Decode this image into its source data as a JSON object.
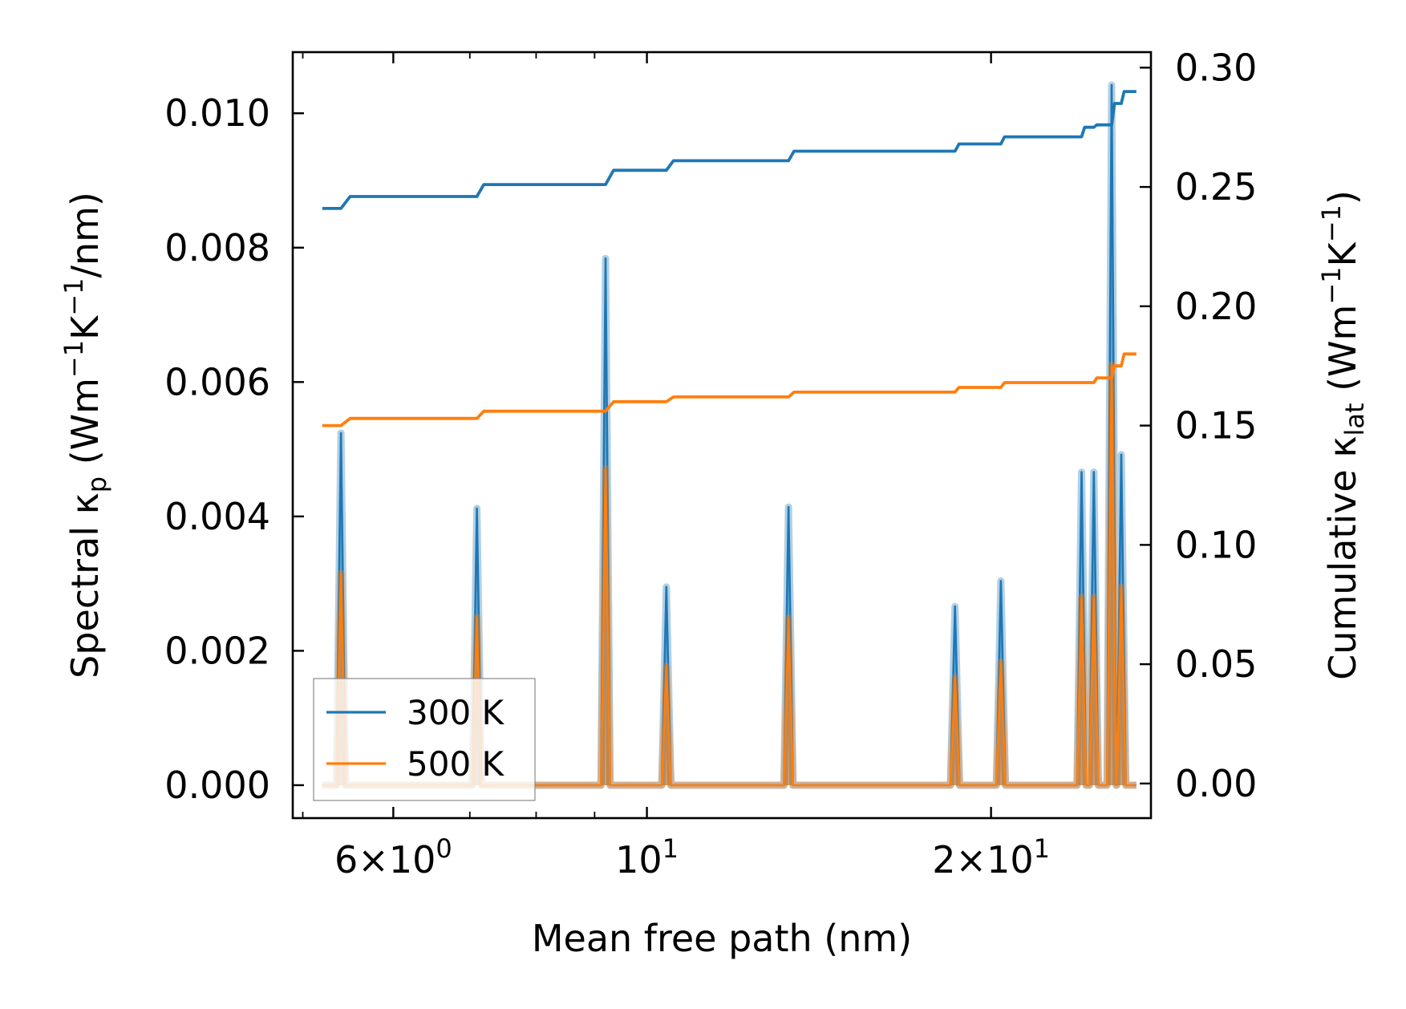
{
  "chart_data": {
    "type": "line",
    "title": "",
    "xlabel": "Mean free path (nm)",
    "xscale": "log",
    "xlim": [
      4.9,
      27.6
    ],
    "x_ticks": [
      {
        "value": 6,
        "mantissa": "6",
        "exponent": "0"
      },
      {
        "value": 10,
        "mantissa": "",
        "exponent": "1"
      },
      {
        "value": 20,
        "mantissa": "2",
        "exponent": "1"
      }
    ],
    "x_minor_ticks": [
      5,
      7,
      8,
      9,
      30
    ],
    "ylabel_left": {
      "base": "Spectral κ",
      "sub": "p",
      "text": " (Wm",
      "sup1": "−1",
      "mid": "K",
      "sup2": "−1",
      "end": "/nm)"
    },
    "ylim_left": [
      -0.00049,
      0.01091
    ],
    "y_ticks_left": [
      {
        "value": 0.0,
        "label": "0.000"
      },
      {
        "value": 0.002,
        "label": "0.002"
      },
      {
        "value": 0.004,
        "label": "0.004"
      },
      {
        "value": 0.006,
        "label": "0.006"
      },
      {
        "value": 0.008,
        "label": "0.008"
      },
      {
        "value": 0.01,
        "label": "0.010"
      }
    ],
    "ylabel_right": {
      "base": "Cumulative κ",
      "sub": "lat",
      "text": " (Wm",
      "sup1": "−1",
      "mid": "K",
      "sup2": "−1",
      "end": ")"
    },
    "ylim_right": [
      -0.0145,
      0.3065
    ],
    "y_ticks_right": [
      {
        "value": 0.0,
        "label": "0.00"
      },
      {
        "value": 0.05,
        "label": "0.05"
      },
      {
        "value": 0.1,
        "label": "0.10"
      },
      {
        "value": 0.15,
        "label": "0.15"
      },
      {
        "value": 0.2,
        "label": "0.20"
      },
      {
        "value": 0.25,
        "label": "0.25"
      },
      {
        "value": 0.3,
        "label": "0.30"
      }
    ],
    "x_range": [
      5.2,
      26.8
    ],
    "spike_positions": [
      5.4,
      7.1,
      9.2,
      10.4,
      13.3,
      18.6,
      20.4,
      24.0,
      24.6,
      25.5,
      26.0
    ],
    "spike_halfwidth_log": 0.004,
    "series": [
      {
        "name": "300 K",
        "color": "#1f77b4",
        "spectral_peaks": [
          0.00524,
          0.00412,
          0.00784,
          0.00295,
          0.00414,
          0.00266,
          0.00304,
          0.00466,
          0.00466,
          0.01042,
          0.00492
        ],
        "cumulative": {
          "x": [
            5.2,
            5.4,
            5.5,
            7.1,
            7.2,
            9.2,
            9.35,
            10.4,
            10.55,
            13.3,
            13.45,
            18.6,
            18.75,
            20.4,
            20.55,
            24.0,
            24.15,
            24.6,
            24.75,
            25.5,
            25.65,
            26.0,
            26.15,
            26.8
          ],
          "y": [
            0.241,
            0.241,
            0.246,
            0.246,
            0.251,
            0.251,
            0.257,
            0.257,
            0.261,
            0.261,
            0.265,
            0.265,
            0.268,
            0.268,
            0.271,
            0.271,
            0.275,
            0.275,
            0.276,
            0.276,
            0.285,
            0.285,
            0.29,
            0.29
          ]
        }
      },
      {
        "name": "500 K",
        "color": "#ff7f0e",
        "spectral_peaks": [
          0.00315,
          0.0025,
          0.00471,
          0.00177,
          0.00249,
          0.0016,
          0.00183,
          0.0028,
          0.0028,
          0.00626,
          0.00295
        ],
        "cumulative": {
          "x": [
            5.2,
            5.4,
            5.5,
            7.1,
            7.2,
            9.2,
            9.35,
            10.4,
            10.55,
            13.3,
            13.45,
            18.6,
            18.75,
            20.4,
            20.55,
            24.0,
            24.15,
            24.6,
            24.75,
            25.5,
            25.65,
            26.0,
            26.15,
            26.8
          ],
          "y": [
            0.15,
            0.15,
            0.153,
            0.153,
            0.156,
            0.156,
            0.16,
            0.16,
            0.162,
            0.162,
            0.164,
            0.164,
            0.166,
            0.166,
            0.168,
            0.168,
            0.168,
            0.168,
            0.17,
            0.17,
            0.175,
            0.175,
            0.18,
            0.18
          ]
        }
      }
    ],
    "legend": {
      "location": "lower-left",
      "entries": [
        "300 K",
        "500 K"
      ]
    }
  }
}
